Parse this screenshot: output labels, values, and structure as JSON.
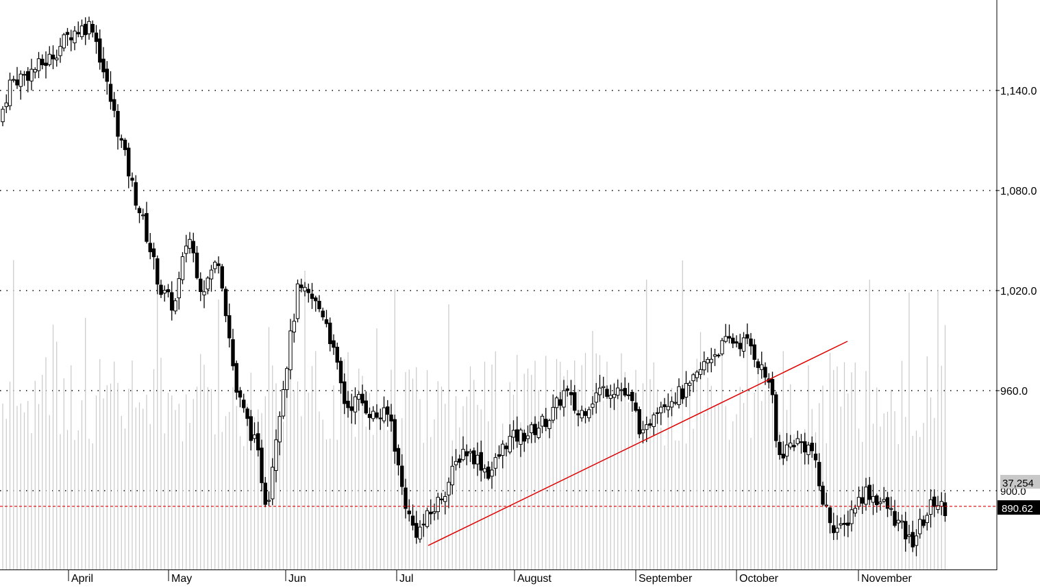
{
  "chart_data": {
    "type": "candlestick",
    "instrument": "",
    "x_axis": {
      "month_labels": [
        "April",
        "May",
        "Jun",
        "Jul",
        "August",
        "September",
        "October",
        "November"
      ]
    },
    "y_axis": {
      "range": [
        850,
        1185
      ],
      "ticks": [
        960,
        1020,
        1080,
        1140
      ],
      "tick_labels": [
        "960.0",
        "1,020.0",
        "1,080.0",
        "1,140.0"
      ],
      "low_tick": 900,
      "low_tick_label": "900.0",
      "grid": "dotted horizontal"
    },
    "last_price": 890.62,
    "last_price_label": "890.62",
    "last_volume_label": "37,254",
    "colors": {
      "up_candle": "#ffffff",
      "down_candle": "#000000",
      "wick": "#000000",
      "volume_bar": "#c8c8c8",
      "trendline": "#e00000",
      "last_price_line": "#e00000",
      "last_price_tag": "#000000",
      "volume_tag": "#c8c8c8"
    },
    "trendline": {
      "from": [
        639,
        900
      ],
      "to": [
        1237,
        932
      ]
    },
    "candle_spacing_note": "approx 5.2 bars per week",
    "anchors": [
      [
        0,
        1115
      ],
      [
        20,
        1145
      ],
      [
        45,
        1150
      ],
      [
        75,
        1158
      ],
      [
        110,
        1175
      ],
      [
        140,
        1180
      ],
      [
        160,
        1145
      ],
      [
        200,
        1080
      ],
      [
        215,
        1060
      ],
      [
        240,
        1020
      ],
      [
        260,
        1010
      ],
      [
        280,
        1055
      ],
      [
        300,
        1020
      ],
      [
        325,
        1040
      ],
      [
        350,
        960
      ],
      [
        380,
        925
      ],
      [
        395,
        890
      ],
      [
        410,
        940
      ],
      [
        440,
        1020
      ],
      [
        460,
        1015
      ],
      [
        480,
        1005
      ],
      [
        510,
        950
      ],
      [
        530,
        955
      ],
      [
        550,
        945
      ],
      [
        575,
        945
      ],
      [
        590,
        905
      ],
      [
        605,
        880
      ],
      [
        615,
        875
      ],
      [
        640,
        890
      ],
      [
        660,
        905
      ],
      [
        680,
        925
      ],
      [
        700,
        920
      ],
      [
        720,
        910
      ],
      [
        745,
        930
      ],
      [
        780,
        935
      ],
      [
        810,
        945
      ],
      [
        830,
        960
      ],
      [
        850,
        945
      ],
      [
        880,
        960
      ],
      [
        910,
        962
      ],
      [
        930,
        950
      ],
      [
        945,
        930
      ],
      [
        960,
        950
      ],
      [
        980,
        955
      ],
      [
        1010,
        960
      ],
      [
        1040,
        980
      ],
      [
        1070,
        990
      ],
      [
        1100,
        988
      ],
      [
        1120,
        970
      ],
      [
        1130,
        965
      ],
      [
        1140,
        920
      ],
      [
        1165,
        930
      ],
      [
        1190,
        925
      ],
      [
        1205,
        895
      ],
      [
        1220,
        880
      ],
      [
        1235,
        875
      ],
      [
        1250,
        890
      ],
      [
        1270,
        900
      ],
      [
        1300,
        890
      ],
      [
        1320,
        878
      ],
      [
        1335,
        868
      ],
      [
        1350,
        880
      ],
      [
        1370,
        895
      ],
      [
        1380,
        890
      ]
    ]
  }
}
